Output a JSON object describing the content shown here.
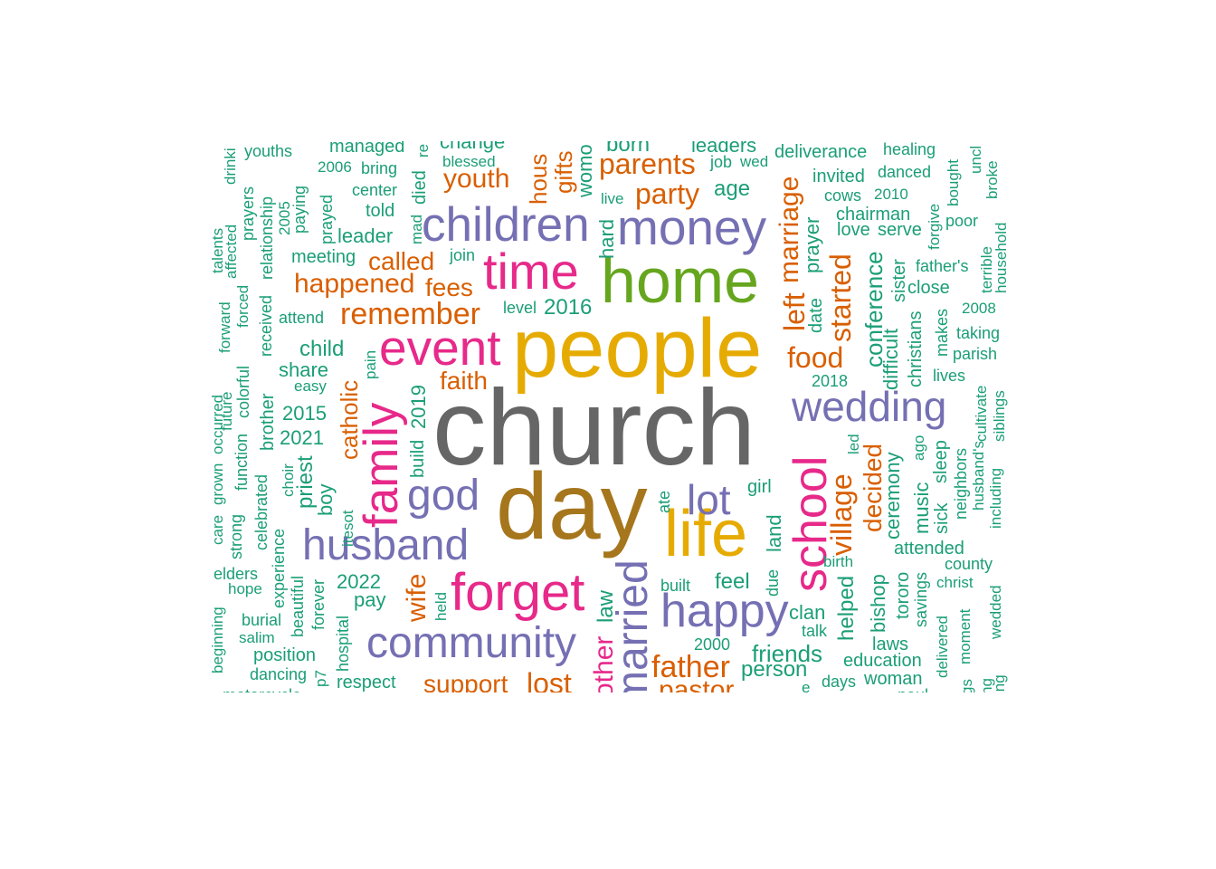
{
  "colors": {
    "teal": "#1b9e77",
    "orange": "#d95f02",
    "purple": "#7570b3",
    "pink": "#e7298a",
    "green": "#66a61e",
    "gold": "#e6ab02",
    "brown": "#a6761d",
    "gray": "#666666"
  },
  "words": [
    "church",
    "day",
    "people",
    "life",
    "home",
    "time",
    "children",
    "money",
    "event",
    "family",
    "forget",
    "married",
    "happy",
    "school",
    "wedding",
    "husband",
    "community",
    "god",
    "lot",
    "parents",
    "remember",
    "father",
    "village",
    "food",
    "marriage",
    "left",
    "started",
    "youth",
    "party",
    "called",
    "happened",
    "fees",
    "faith",
    "wife",
    "catholic",
    "lost",
    "support",
    "pastor",
    "mother",
    "conference",
    "decided",
    "helped",
    "hard",
    "law",
    "friends",
    "person",
    "age",
    "child",
    "share",
    "2015",
    "2021",
    "2019",
    "build",
    "2016",
    "2022",
    "pay",
    "priest",
    "boy",
    "feel",
    "clan",
    "bishop",
    "tororo",
    "ceremony",
    "music",
    "difficult",
    "christians",
    "sister",
    "prayer",
    "date",
    "land",
    "due",
    "girl",
    "ate",
    "built",
    "2000",
    "leader",
    "told",
    "center",
    "bring",
    "2006",
    "managed",
    "youths",
    "prayers",
    "relationship",
    "received",
    "paying",
    "prayed",
    "died",
    "meeting",
    "attend",
    "level",
    "join",
    "live",
    "hous",
    "gifts",
    "womo",
    "born",
    "leaders",
    "change",
    "blessed",
    "job",
    "wed",
    "deliverance",
    "healing",
    "invited",
    "danced",
    "cows",
    "2010",
    "chairman",
    "love",
    "serve",
    "forgive",
    "poor",
    "bought",
    "uncl",
    "broke",
    "household",
    "terrible",
    "father's",
    "close",
    "makes",
    "2008",
    "taking",
    "parish",
    "lives",
    "cultivate",
    "siblings",
    "husband's",
    "neighbors",
    "including",
    "sick",
    "sleep",
    "ago",
    "attended",
    "county",
    "christ",
    "savings",
    "delivered",
    "moment",
    "wedded",
    "education",
    "laws",
    "woman",
    "days",
    "talk",
    "birth",
    "held",
    "2018",
    "led",
    "easy",
    "pain",
    "itesot",
    "choir",
    "brother",
    "colorful",
    "future",
    "function",
    "celebrated",
    "experience",
    "strong",
    "care",
    "grown",
    "occurred",
    "forward",
    "forced",
    "talents",
    "affected",
    "drinki",
    "2005",
    "elders",
    "hope",
    "burial",
    "salim",
    "position",
    "dancing",
    "beginning",
    "beautiful",
    "forever",
    "hospital",
    "p7",
    "respect",
    "motorcycle",
    "mad",
    "re",
    "ng",
    "gs",
    "ing",
    "paul",
    "e"
  ]
}
